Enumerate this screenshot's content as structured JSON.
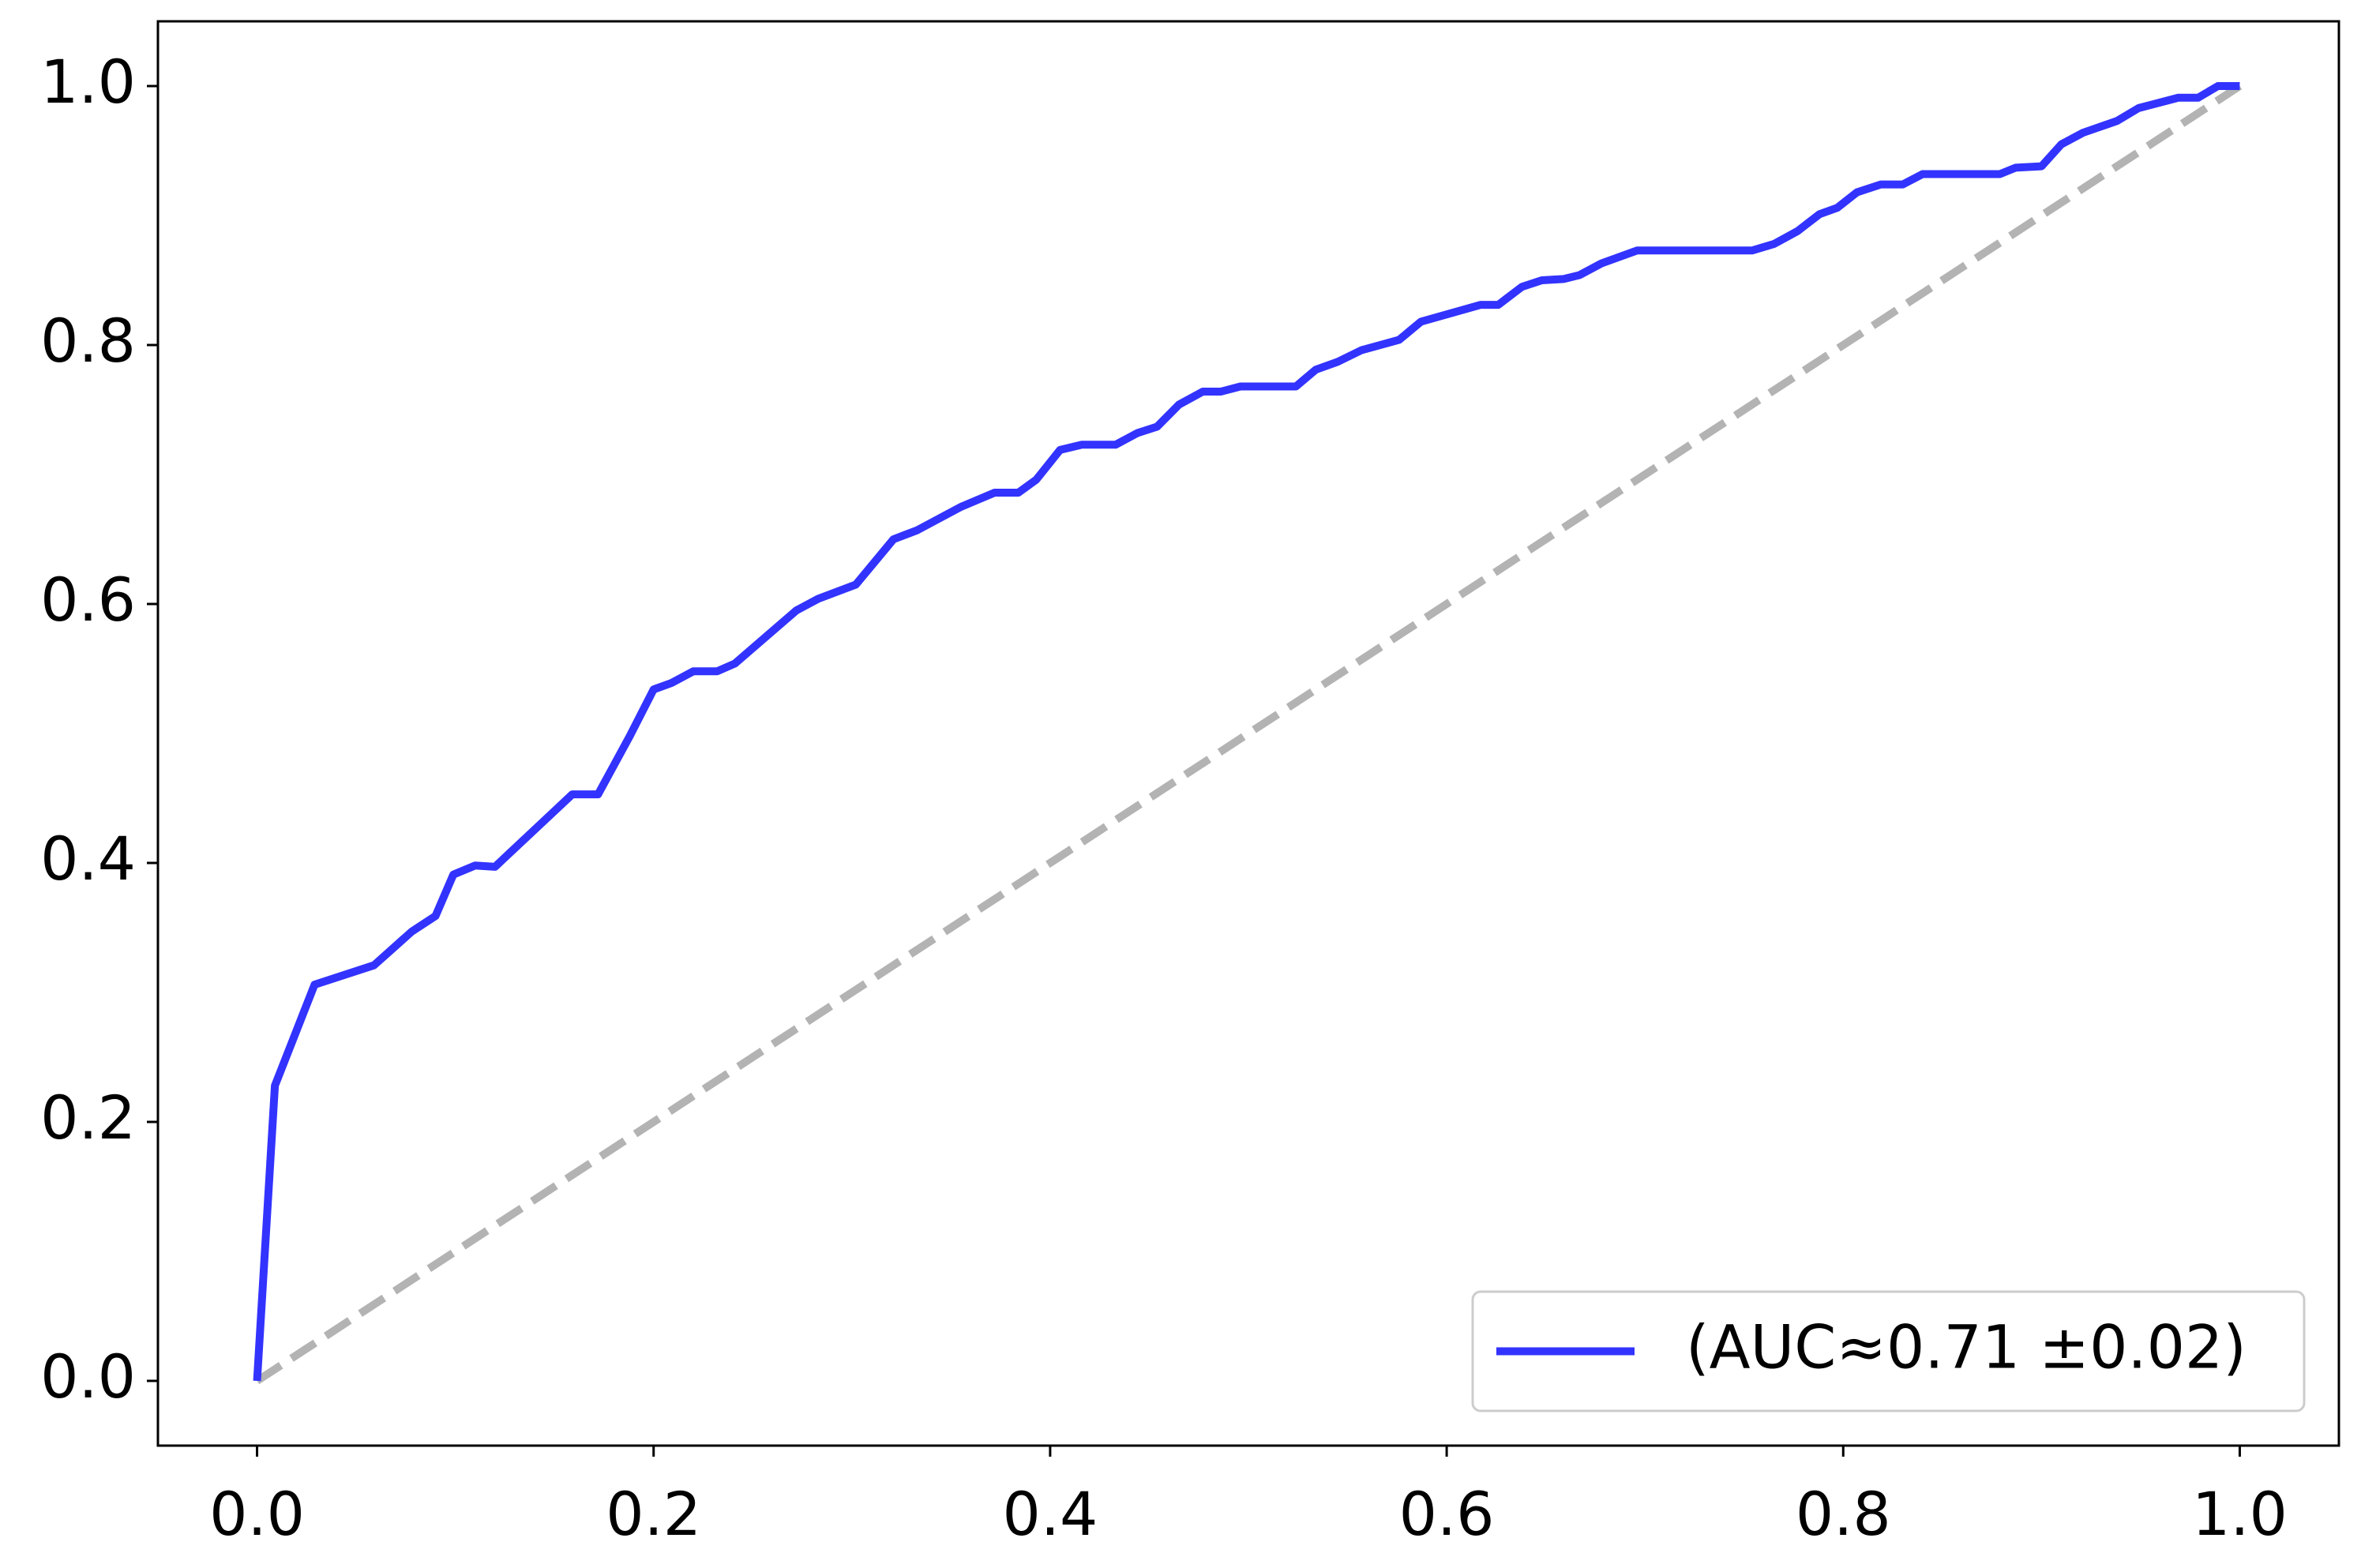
{
  "chart_data": {
    "type": "line",
    "x": [
      0,
      0.009,
      0.029,
      0.059,
      0.078,
      0.09,
      0.099,
      0.11,
      0.12,
      0.159,
      0.172,
      0.188,
      0.2,
      0.209,
      0.22,
      0.232,
      0.241,
      0.272,
      0.283,
      0.302,
      0.321,
      0.333,
      0.355,
      0.372,
      0.384,
      0.393,
      0.405,
      0.416,
      0.433,
      0.444,
      0.454,
      0.465,
      0.477,
      0.486,
      0.496,
      0.524,
      0.534,
      0.545,
      0.557,
      0.576,
      0.587,
      0.617,
      0.626,
      0.638,
      0.648,
      0.659,
      0.667,
      0.678,
      0.696,
      0.754,
      0.765,
      0.777,
      0.788,
      0.797,
      0.807,
      0.819,
      0.83,
      0.84,
      0.879,
      0.887,
      0.9,
      0.91,
      0.921,
      0.938,
      0.949,
      0.969,
      0.979,
      0.989,
      1
    ],
    "series": [
      {
        "name": "(AUC≈0.71 ±0.02)",
        "color": "#3333ff",
        "values": [
          0,
          0.228,
          0.306,
          0.321,
          0.347,
          0.359,
          0.391,
          0.398,
          0.397,
          0.453,
          0.453,
          0.498,
          0.534,
          0.539,
          0.548,
          0.548,
          0.554,
          0.595,
          0.604,
          0.615,
          0.65,
          0.657,
          0.675,
          0.686,
          0.686,
          0.696,
          0.719,
          0.723,
          0.723,
          0.732,
          0.737,
          0.754,
          0.764,
          0.764,
          0.768,
          0.768,
          0.781,
          0.787,
          0.796,
          0.804,
          0.818,
          0.831,
          0.831,
          0.845,
          0.85,
          0.851,
          0.854,
          0.863,
          0.873,
          0.873,
          0.878,
          0.888,
          0.901,
          0.906,
          0.918,
          0.924,
          0.924,
          0.932,
          0.932,
          0.937,
          0.938,
          0.955,
          0.964,
          0.973,
          0.983,
          0.991,
          0.991,
          1,
          1
        ]
      }
    ],
    "diagonal": {
      "x": [
        0,
        1
      ],
      "values": [
        0,
        1
      ],
      "color": "#b3b3b3"
    },
    "xlim": [
      -0.05,
      1.05
    ],
    "ylim": [
      -0.05,
      1.05
    ],
    "xticks": [
      {
        "value": 0,
        "label": "0.0"
      },
      0.2,
      0.4,
      0.6,
      0.8,
      {
        "value": 1,
        "label": "1.0"
      }
    ],
    "yticks": [
      {
        "value": 0,
        "label": "0.0"
      },
      0.2,
      0.4,
      0.6,
      0.8,
      {
        "value": 1,
        "label": "1.0"
      }
    ],
    "legend": "lower right",
    "grid": false
  }
}
